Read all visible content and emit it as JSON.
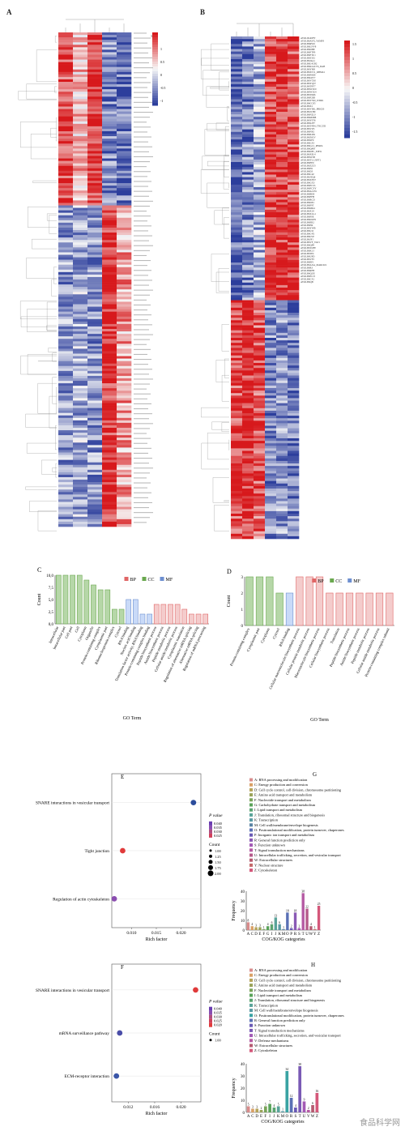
{
  "panels": {
    "A": "A",
    "B": "B",
    "C": "C",
    "D": "D",
    "E": "E",
    "F": "F",
    "G": "G",
    "H": "H"
  },
  "heatmap_A": {
    "legend_ticks": [
      "1.5",
      "1",
      "0.5",
      "0",
      "-0.5",
      "-1"
    ],
    "colors": {
      "high": "#d7191c",
      "mid": "#f7f7f7",
      "low": "#2c3e9c"
    }
  },
  "heatmap_B": {
    "legend_ticks": [
      "1.5",
      "1",
      "0.5",
      "0",
      "-0.5",
      "-1",
      "-1.5"
    ],
    "gene_labels": [
      "AYOL0b4DFY",
      "AYOLB6AYX_VAMP3",
      "AYOLB6RW6",
      "AYOLB6LNV8",
      "AYOLB6DHE",
      "AYOLB6FTP9",
      "AYOLB6FTU1",
      "AYOLB6S5E1",
      "AYOLB6J4A1",
      "AYOLB6L4CB2",
      "AYOLB6KL4CT6_DAB",
      "AYOLB6YM8",
      "AYOLB6XT11_RBM24",
      "AYOLB6F6K8",
      "AYOLB6LPT7",
      "AYOLB6V5X0",
      "AYOLB6YQ37",
      "AYOLB6T8Y7",
      "AYOLB6W3U0",
      "AYOLB6W3G4",
      "AYOLB6T6R6",
      "AYOLB6F2E8",
      "AYOLB6T7K0_WDR1",
      "AYOLB6CC85",
      "AYOLB6X1",
      "AYOLB6VIB1_PRKD3",
      "AYOLB6JCH9",
      "AYOLB6N2L0",
      "AYOLB6M9B8",
      "AYOLB6Y0T6",
      "AYOLB6S2F7",
      "AYOLB6T4N4_TNC25D",
      "AYOLB6VIJ5",
      "AYOLB6NK1",
      "AYOLB6P4S9",
      "AYOLB6Z6LV",
      "AYOLB6SF9",
      "AYOLB6LX3",
      "AYOLB6GC1_PERP4",
      "AYOLB6Q4I8",
      "AYOLB6DFC_EIF31",
      "AYOLB6X0L4",
      "AYOLB6W5B",
      "AYOLB6T3_USPT1",
      "AYOLB6FE9",
      "AYOLB6ZZZ3",
      "AYOLB6H1",
      "AYOLB6D3",
      "AYOLB6C4Z",
      "AYOLB6JZQ6",
      "AYOLB6XFX7",
      "AYOLB6GX3",
      "AYOLB6FCS5",
      "AYOLB6FCXY",
      "AYOLB6AC2W",
      "AYOLB6BD0",
      "AYOLB6FFH",
      "AYOLB6RCD",
      "AYOLB6DE1",
      "AYOLB6F9T",
      "AYOLB6MR4",
      "AYOLB6X19",
      "AYOLB6X1G1",
      "AYOLB6F0E",
      "AYOLB6DWH",
      "AYOLB6ER2",
      "AYOLB6H4",
      "AYOLB6YWB",
      "AYOLB6U1I",
      "AYOLB6C4X",
      "AYOLB6LVP",
      "AYOLB6JF1",
      "AYOLB6VF_VAT1",
      "AYOLB6QP9",
      "AYOLB6TOFE",
      "AYOLB6K13",
      "AYOLB6TPC",
      "AYOLB6U9D",
      "AYOLB6VF3",
      "AYOLB6EF1",
      "AYOLB6AXA_MARCKS",
      "AYOLB6R3",
      "AYOLB6RFB",
      "AYOLB6QUE",
      "AYOLB6FCJ3",
      "AYOLB6CX1",
      "AYOLB6QB"
    ]
  },
  "chart_data": [
    {
      "type": "bar",
      "panel": "C",
      "ylabel": "Count",
      "xlabel": "GO Term",
      "ylim": [
        0,
        10
      ],
      "yticks": [
        "0,0",
        "2,5",
        "5,0",
        "7,5",
        "10,0"
      ],
      "legend": [
        {
          "name": "BP",
          "color": "#e06666"
        },
        {
          "name": "CC",
          "color": "#6aa84f"
        },
        {
          "name": "MF",
          "color": "#6d8fd0"
        }
      ],
      "categories": [
        "Intracellular",
        "Intracellular part",
        "Cell part",
        "Cell",
        "Cytoplasm",
        "Organelle",
        "Protein-containing complex",
        "Cytoplasmic part",
        "Ribonucleoprotein complex",
        "Cytosol",
        "RNA binding",
        "Nucleic acid binding",
        "Translation factor activity, RNA binding",
        "Protein-containing complex binding",
        "Peptide biosynthetic process",
        "Amide biosynthetic process",
        "Peptide metabolic process",
        "Cellular amide metabolic process",
        "Cytoplasmic translation",
        "Regulation of alternative mRNA splicing",
        "Alternative mRNA splicing",
        "Regulation of mRNA processing"
      ],
      "values": [
        10,
        10,
        10,
        10,
        9,
        8,
        7,
        7,
        3,
        3,
        5,
        5,
        2,
        2,
        4,
        4,
        4,
        4,
        3,
        2,
        2,
        2
      ],
      "groups": [
        "CC",
        "CC",
        "CC",
        "CC",
        "CC",
        "CC",
        "CC",
        "CC",
        "CC",
        "CC",
        "MF",
        "MF",
        "MF",
        "MF",
        "BP",
        "BP",
        "BP",
        "BP",
        "BP",
        "BP",
        "BP",
        "BP"
      ]
    },
    {
      "type": "bar",
      "panel": "D",
      "ylabel": "Count",
      "xlabel": "GO Term",
      "ylim": [
        0,
        3
      ],
      "yticks": [
        "0",
        "1",
        "2",
        "3"
      ],
      "legend": [
        {
          "name": "BP",
          "color": "#e06666"
        },
        {
          "name": "CC",
          "color": "#6aa84f"
        },
        {
          "name": "MF",
          "color": "#6d8fd0"
        }
      ],
      "categories": [
        "Protein-containing complex",
        "Cytoplasmic part",
        "Cytoplasm",
        "Cytosol",
        "RNA binding",
        "Cellular macromolecule biosynthetic process",
        "Cellular protein metabolic process",
        "Macromolecule biosynthetic process",
        "Cellular biosynthetic process",
        "Translation",
        "Peptide biosynthetic process",
        "Amide biosynthetic process",
        "Peptide metabolic process",
        "Cellular amide metabolic process",
        "Protein-containing complex subunit"
      ],
      "values": [
        3,
        3,
        3,
        2,
        2,
        3,
        3,
        3,
        2,
        2,
        2,
        2,
        2,
        2,
        2
      ],
      "groups": [
        "CC",
        "CC",
        "CC",
        "CC",
        "MF",
        "BP",
        "BP",
        "BP",
        "BP",
        "BP",
        "BP",
        "BP",
        "BP",
        "BP",
        "BP"
      ]
    },
    {
      "type": "scatter",
      "panel": "E",
      "xlabel": "Rich factor",
      "xticks": [
        "0.010",
        "0.015",
        "0.020"
      ],
      "xlim": [
        0.006,
        0.024
      ],
      "categories": [
        "SNARE interactions in vesicular transport",
        "Tight junction",
        "Regulation of actin cytoskeleton"
      ],
      "x": [
        0.0225,
        0.0082,
        0.0065
      ],
      "pvalue": [
        0.04,
        0.02,
        0.03
      ],
      "count": [
        1,
        1,
        1
      ],
      "colors": [
        "#2c4d9c",
        "#e03a3a",
        "#8a4db0"
      ],
      "legend_pvalue_title": "P value",
      "legend_pvalue_ticks": [
        "0.040",
        "0.035",
        "0.030",
        "0.025"
      ],
      "legend_count_title": "Count",
      "legend_count_ticks": [
        "1.00",
        "1.25",
        "1.50",
        "1.75",
        "2.00"
      ]
    },
    {
      "type": "scatter",
      "panel": "F",
      "xlabel": "Rich factor",
      "xticks": [
        "0.012",
        "0.016",
        "0.020"
      ],
      "xlim": [
        0.0095,
        0.023
      ],
      "categories": [
        "SNARE interactions in vesicular transport",
        "mRNA surveillance pathway",
        "ECM-receptor interaction"
      ],
      "x": [
        0.0222,
        0.0107,
        0.0102
      ],
      "pvalue": [
        0.02,
        0.04,
        0.04
      ],
      "count": [
        1,
        1,
        1
      ],
      "colors": [
        "#e03a3a",
        "#4a4da8",
        "#3a56a8"
      ],
      "legend_pvalue_title": "P value",
      "legend_pvalue_ticks": [
        "0.040",
        "0.035",
        "0.030",
        "0.025",
        "0.020"
      ],
      "legend_count_title": "Count",
      "legend_count_ticks": [
        "1.00"
      ]
    },
    {
      "type": "bar",
      "panel": "G",
      "ylabel": "Frequency",
      "xlabel": "COG/KOG categories",
      "ylim": [
        0,
        40
      ],
      "yticks": [
        "0",
        "10",
        "20",
        "30",
        "40"
      ],
      "categories": [
        "A",
        "C",
        "D",
        "E",
        "F",
        "G",
        "I",
        "J",
        "K",
        "M",
        "O",
        "P",
        "R",
        "S",
        "T",
        "U",
        "W",
        "Y",
        "Z"
      ],
      "values": [
        8,
        4,
        3,
        3,
        1,
        4,
        6,
        13,
        6,
        1,
        18,
        2,
        18,
        2,
        38,
        22,
        4,
        1,
        25
      ],
      "colors": [
        "#d98c8c",
        "#d9a066",
        "#b5a35a",
        "#9aa35a",
        "#7aa35a",
        "#5aa35a",
        "#5aa370",
        "#5aa39a",
        "#5a9aa3",
        "#5a83a3",
        "#5a70b5",
        "#6a5ab5",
        "#8a5ab5",
        "#a35ab5",
        "#b55aa3",
        "#b55a8a",
        "#b55a70",
        "#c46a6a",
        "#d4587a"
      ],
      "legend": [
        "A: RNA processing and modification",
        "C: Energy production and conversion",
        "D: Cell cycle control, cell division, chromosome partitioning",
        "E: Amino acid transport and metabolism",
        "F: Nucleotide transport and metabolism",
        "G: Carbohydrate transport and metabolism",
        "I: Lipid transport and metabolism",
        "J: Translation, ribosomal structure and biogenesis",
        "K: Transcription",
        "M: Cell wall/membrane/envelope biogenesis",
        "O: Posttranslational modification, protein turnover, chaperones",
        "P: Inorganic ion transport and metabolism",
        "R: General function prediction only",
        "S: Function unknown",
        "T: Signal transduction mechanisms",
        "U: Intracellular trafficking, secretion, and vesicular transport",
        "W: Extracellular structures",
        "Y: Nuclear structure",
        "Z: Cytoskeleton"
      ]
    },
    {
      "type": "bar",
      "panel": "H",
      "ylabel": "Frequency",
      "xlabel": "COG/KOG categories",
      "ylim": [
        0,
        40
      ],
      "yticks": [
        "0",
        "10",
        "20",
        "30",
        "40"
      ],
      "categories": [
        "A",
        "C",
        "D",
        "E",
        "F",
        "I",
        "J",
        "K",
        "M",
        "O",
        "R",
        "S",
        "T",
        "U",
        "V",
        "W",
        "Z"
      ],
      "values": [
        5,
        3,
        3,
        2,
        5,
        7,
        4,
        5,
        1,
        34,
        12,
        4,
        38,
        9,
        2,
        6,
        16
      ],
      "colors": [
        "#d98c8c",
        "#d9a066",
        "#b5a35a",
        "#9aa35a",
        "#7aa35a",
        "#5aa35a",
        "#5aa370",
        "#5aa39a",
        "#5a9aa3",
        "#3aa3a3",
        "#5a70b5",
        "#6a5ab5",
        "#7a5ab5",
        "#a35ab5",
        "#b55aa3",
        "#b55a70",
        "#d4587a"
      ],
      "legend": [
        "A: RNA processing and modification",
        "C: Energy production and conversion",
        "D: Cell cycle control, cell division, chromosome partitioning",
        "E: Amino acid transport and metabolism",
        "F: Nucleotide transport and metabolism",
        "I: Lipid transport and metabolism",
        "J: Translation, ribosomal structure and biogenesis",
        "K: Transcription",
        "M: Cell wall/membrane/envelope biogenesis",
        "O: Posttranslational modification, protein turnover, chaperones",
        "R: General function prediction only",
        "S: Function unknown",
        "T: Signal transduction mechanisms",
        "U: Intracellular trafficking, secretion, and vesicular transport",
        "V: Defense mechanisms",
        "W: Extracellular structures",
        "Z: Cytoskeleton"
      ]
    }
  ],
  "watermark": "食品科学网"
}
